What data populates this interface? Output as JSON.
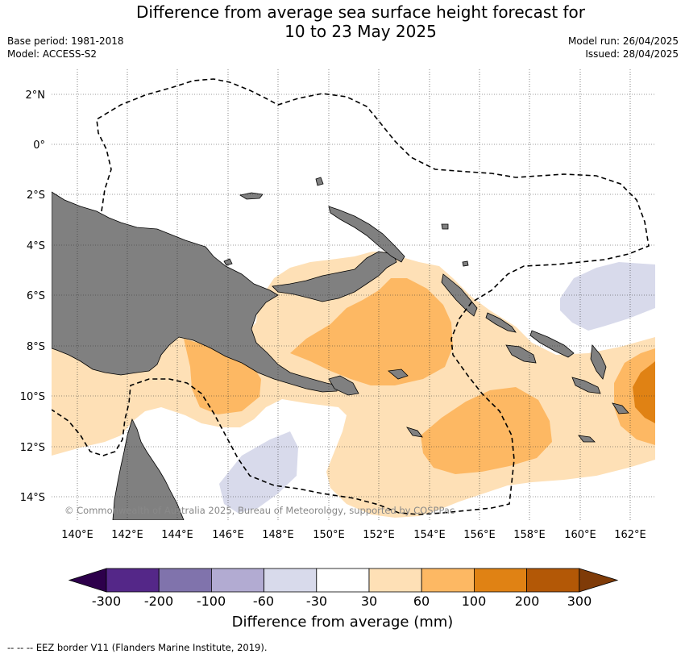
{
  "header": {
    "title_line1": "Difference from average sea surface height forecast for",
    "title_line2": "10 to 23 May 2025",
    "base_period": "Base period: 1981-2018",
    "model": "Model: ACCESS-S2",
    "model_run": "Model run: 26/04/2025",
    "issued": "Issued: 28/04/2025"
  },
  "map": {
    "lat_labels": [
      "2°N",
      "0°",
      "2°S",
      "4°S",
      "6°S",
      "8°S",
      "10°S",
      "12°S",
      "14°S"
    ],
    "lon_labels": [
      "140°E",
      "142°E",
      "144°E",
      "146°E",
      "148°E",
      "150°E",
      "152°E",
      "154°E",
      "156°E",
      "158°E",
      "160°E",
      "162°E"
    ],
    "copyright": "© Commonwealth of Australia 2025, Bureau of Meteorology, supported by COSPPac",
    "land_color": "#808080",
    "grid_style": "dotted"
  },
  "colorbar": {
    "labels": [
      "-300",
      "-200",
      "-100",
      "-60",
      "-30",
      "30",
      "60",
      "100",
      "200",
      "300"
    ],
    "colors": [
      "#2d004b",
      "#542788",
      "#8073ac",
      "#b2abd2",
      "#d8daeb",
      "#ffffff",
      "#fee0b6",
      "#fdb863",
      "#e08214",
      "#b35806",
      "#7f3b08"
    ],
    "title": "Difference from average (mm)"
  },
  "footnote": "--  --  -- EEZ border V11 (Flanders Marine Institute, 2019)."
}
